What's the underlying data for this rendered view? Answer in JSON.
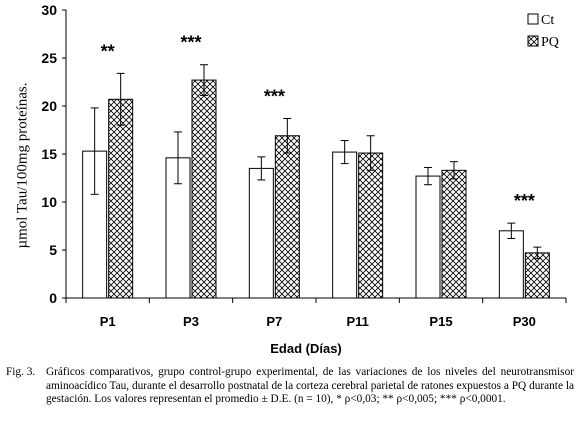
{
  "chart_data": {
    "type": "bar",
    "categories": [
      "P1",
      "P3",
      "P7",
      "P11",
      "P15",
      "P30"
    ],
    "series": [
      {
        "name": "Ct",
        "values": [
          15.3,
          14.6,
          13.5,
          15.2,
          12.7,
          7.0
        ],
        "errors": [
          4.5,
          2.7,
          1.2,
          1.2,
          0.9,
          0.8
        ]
      },
      {
        "name": "PQ",
        "values": [
          20.7,
          22.7,
          16.9,
          15.1,
          13.3,
          4.7
        ],
        "errors": [
          2.7,
          1.6,
          1.8,
          1.8,
          0.9,
          0.6
        ]
      }
    ],
    "significance": [
      "**",
      "***",
      "***",
      "",
      "",
      "***"
    ],
    "ylim": [
      0,
      30
    ],
    "yticks": [
      0,
      5,
      10,
      15,
      20,
      25,
      30
    ],
    "xlabel": "Edad (Días)",
    "ylabel": "µmol Tau/100mg proteínas.",
    "legend_position": "top-right",
    "colors": {
      "axis": "#000000",
      "ct_fill": "#ffffff",
      "pq_pattern": "crosshatch"
    }
  },
  "caption": {
    "label": "Fig. 3.",
    "text": "Gráficos comparativos, grupo control-grupo experimental, de las variaciones de los niveles del neurotransmisor aminoacídico Tau, durante el desarrollo postnatal de la corteza cerebral parietal de ratones expuestos a PQ durante la gestación. Los valores representan el promedio ± D.E. (n = 10), * ρ<0,03; ** ρ<0,005; *** ρ<0,0001."
  }
}
